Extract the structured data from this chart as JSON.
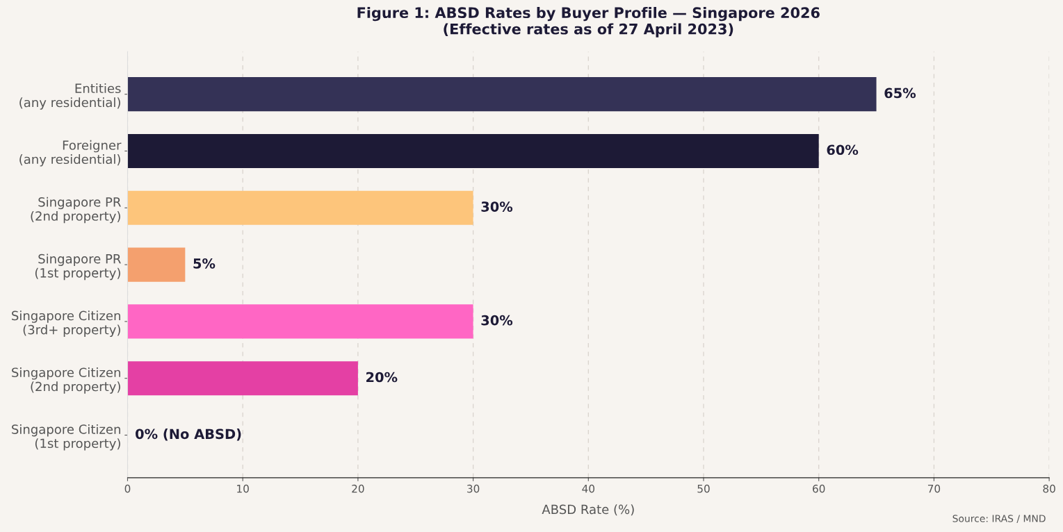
{
  "chart_data": {
    "type": "bar",
    "orientation": "horizontal",
    "title": "Figure 1: ABSD Rates by Buyer Profile — Singapore 2026\n(Effective rates as of 27 April 2023)",
    "xlabel": "ABSD Rate (%)",
    "categories": [
      "Entities\n(any residential)",
      "Foreigner\n(any residential)",
      "Singapore PR\n(2nd property)",
      "Singapore PR\n(1st property)",
      "Singapore Citizen\n(3rd+ property)",
      "Singapore Citizen\n(2nd property)",
      "Singapore Citizen\n(1st property)"
    ],
    "values": [
      65,
      60,
      30,
      5,
      30,
      20,
      0
    ],
    "colors": [
      "#343256",
      "#1d1a36",
      "#fdc57b",
      "#f4a06e",
      "#ff66c4",
      "#e440a4",
      "#e440a4"
    ],
    "value_labels": [
      "65%",
      "60%",
      "30%",
      "5%",
      "30%",
      "20%",
      "0% (No ABSD)"
    ],
    "xlim": [
      0,
      80
    ],
    "xticks": [
      0,
      10,
      20,
      30,
      40,
      50,
      60,
      70,
      80
    ],
    "grid": "x",
    "legend": false,
    "annotations": [
      "Source: IRAS / MND"
    ]
  }
}
